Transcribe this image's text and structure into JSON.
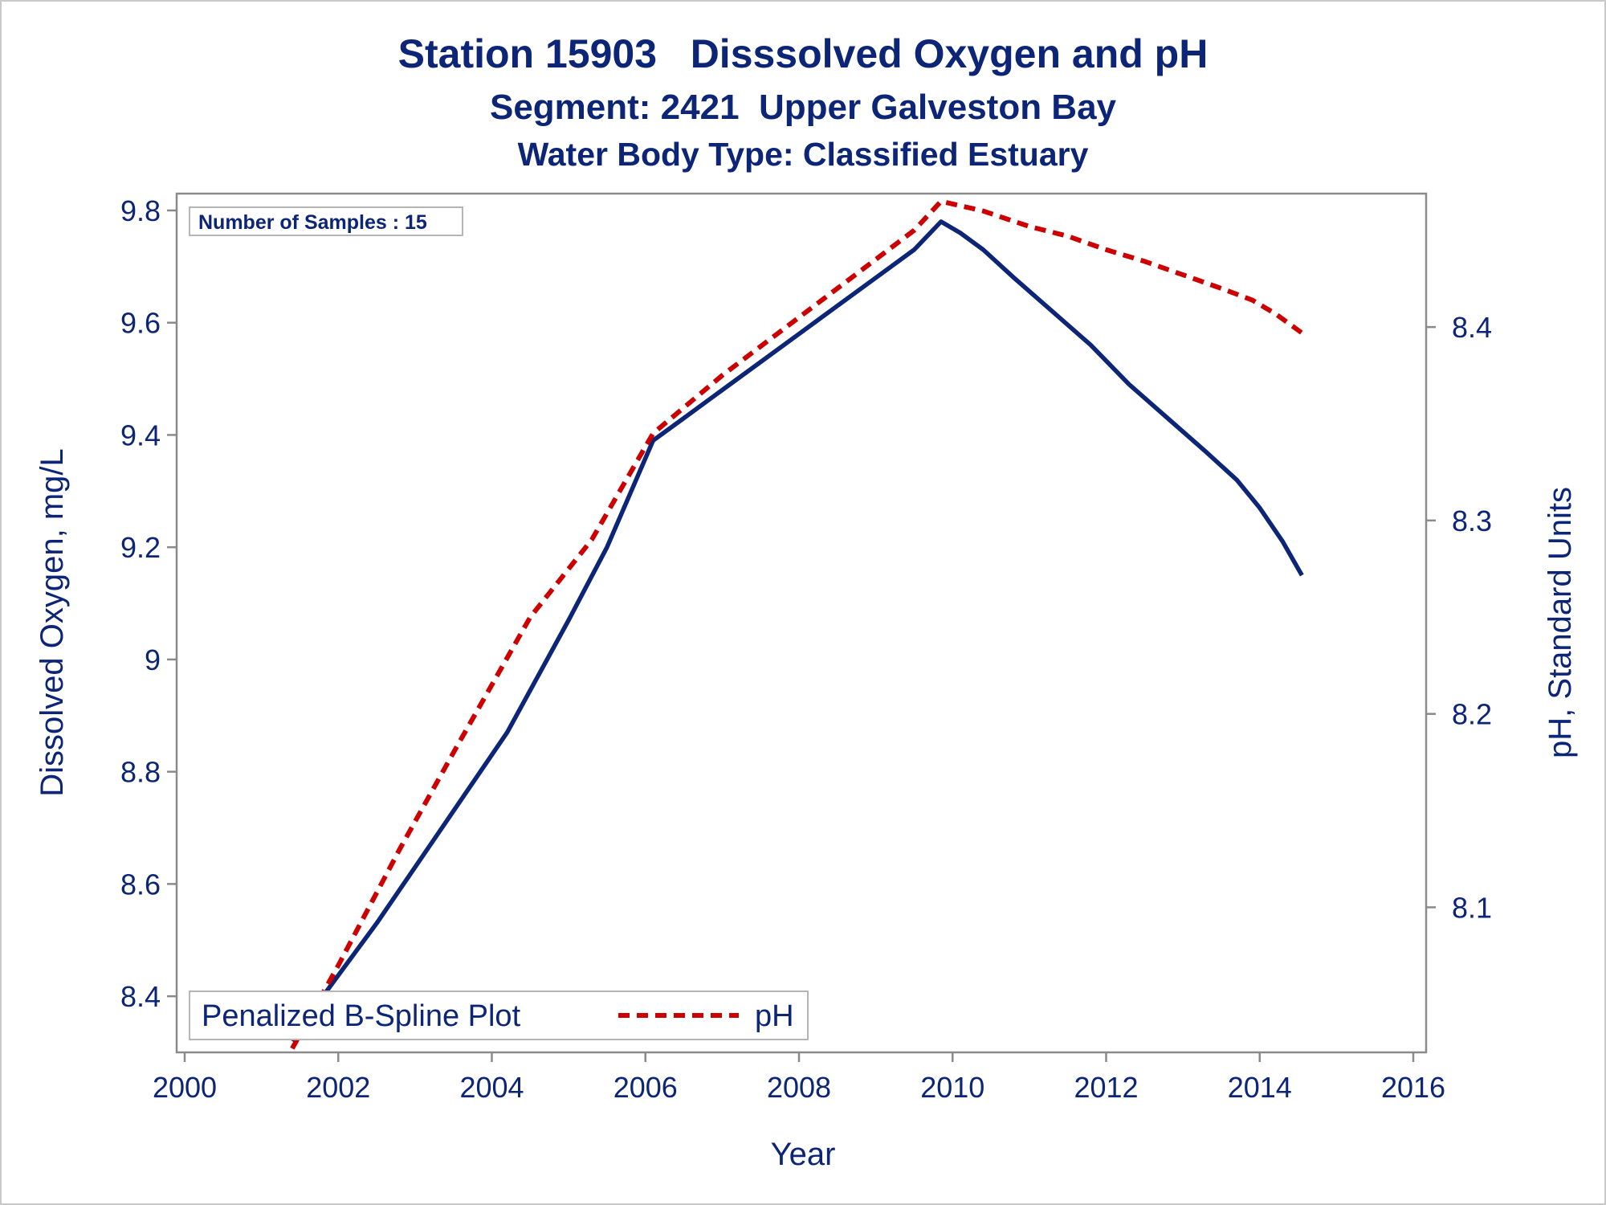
{
  "chart_data": {
    "type": "line",
    "title": "Station 15903   Disssolved Oxygen and pH",
    "subtitle": "Segment: 2421  Upper Galveston Bay",
    "subtitle2": "Water Body Type: Classified Estuary",
    "xlabel": "Year",
    "ylabel": "Dissolved Oxygen, mg/L",
    "y2label": "pH, Standard Units",
    "xlim": [
      2000,
      2016
    ],
    "ylim": [
      8.3,
      9.83
    ],
    "y2lim": [
      8.025,
      8.469
    ],
    "x_ticks": [
      "2000",
      "2002",
      "2004",
      "2006",
      "2008",
      "2010",
      "2012",
      "2014",
      "2016"
    ],
    "y_ticks": [
      "8.4",
      "8.6",
      "8.8",
      "9",
      "9.2",
      "9.4",
      "9.6",
      "9.8"
    ],
    "y2_ticks": [
      "8.1",
      "8.2",
      "8.3",
      "8.4"
    ],
    "inset": "Number of Samples : 15",
    "legend": {
      "title": "Penalized B-Spline Plot",
      "position": "bottom-left",
      "entries": [
        {
          "label": "pH",
          "color": "#cc0000",
          "style": "dashed"
        }
      ]
    },
    "grid": false,
    "series": [
      {
        "axis": "left",
        "color": "#0c2577",
        "style": "solid",
        "points": [
          [
            2001.4,
            8.32
          ],
          [
            2001.8,
            8.4
          ],
          [
            2002.5,
            8.53
          ],
          [
            2003.3,
            8.69
          ],
          [
            2004.2,
            8.87
          ],
          [
            2005.0,
            9.07
          ],
          [
            2005.5,
            9.2
          ],
          [
            2006.1,
            9.39
          ],
          [
            2006.5,
            9.43
          ],
          [
            2007.0,
            9.48
          ],
          [
            2007.5,
            9.53
          ],
          [
            2008.0,
            9.58
          ],
          [
            2008.5,
            9.63
          ],
          [
            2009.0,
            9.68
          ],
          [
            2009.5,
            9.73
          ],
          [
            2009.85,
            9.78
          ],
          [
            2010.1,
            9.76
          ],
          [
            2010.4,
            9.73
          ],
          [
            2010.8,
            9.68
          ],
          [
            2011.3,
            9.62
          ],
          [
            2011.8,
            9.56
          ],
          [
            2012.3,
            9.49
          ],
          [
            2012.8,
            9.43
          ],
          [
            2013.3,
            9.37
          ],
          [
            2013.7,
            9.32
          ],
          [
            2014.0,
            9.27
          ],
          [
            2014.3,
            9.21
          ],
          [
            2014.55,
            9.15
          ]
        ]
      },
      {
        "name": "pH",
        "axis": "right",
        "color": "#cc0000",
        "style": "dashed",
        "points": [
          [
            2001.4,
            8.027
          ],
          [
            2002.0,
            8.07
          ],
          [
            2002.8,
            8.13
          ],
          [
            2003.5,
            8.18
          ],
          [
            2004.5,
            8.25
          ],
          [
            2005.3,
            8.29
          ],
          [
            2006.1,
            8.345
          ],
          [
            2007.0,
            8.375
          ],
          [
            2008.0,
            8.405
          ],
          [
            2009.0,
            8.435
          ],
          [
            2009.5,
            8.45
          ],
          [
            2009.85,
            8.465
          ],
          [
            2010.4,
            8.46
          ],
          [
            2011.0,
            8.452
          ],
          [
            2011.5,
            8.447
          ],
          [
            2012.0,
            8.44
          ],
          [
            2012.5,
            8.434
          ],
          [
            2013.0,
            8.427
          ],
          [
            2013.5,
            8.42
          ],
          [
            2013.9,
            8.414
          ],
          [
            2014.2,
            8.407
          ],
          [
            2014.55,
            8.397
          ]
        ]
      }
    ]
  }
}
